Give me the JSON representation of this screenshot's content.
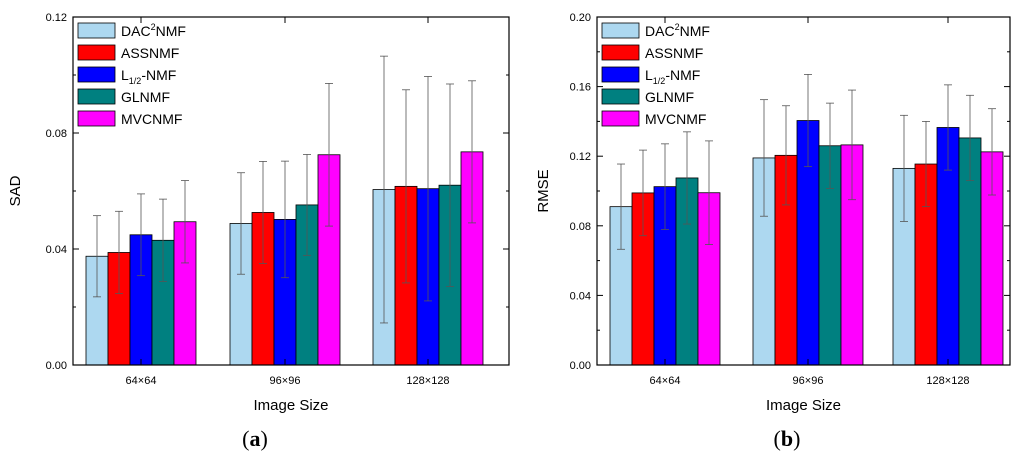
{
  "chart_data": [
    {
      "type": "bar",
      "panel": "a",
      "xlabel": "Image Size",
      "ylabel": "SAD",
      "ylim": [
        0,
        0.12
      ],
      "yticks": [
        "0.00",
        "0.04",
        "0.08",
        "0.12"
      ],
      "categories": [
        "64×64",
        "96×96",
        "128×128"
      ],
      "legend_position": "top-left",
      "series": [
        {
          "name": "DAC²NMF",
          "base": "DAC",
          "sup": "2",
          "after": "NMF",
          "color": "#add8f0",
          "values": [
            0.0375,
            0.0488,
            0.0605
          ],
          "errors": [
            0.014,
            0.0175,
            0.046
          ]
        },
        {
          "name": "ASSNMF",
          "base": "ASSNMF",
          "color": "#ff0000",
          "values": [
            0.0388,
            0.0526,
            0.0616
          ],
          "errors": [
            0.0142,
            0.0176,
            0.0333
          ]
        },
        {
          "name": "L1/2-NMF",
          "base": "L",
          "sub": "1/2",
          "after": "-NMF",
          "color": "#0000ff",
          "values": [
            0.0449,
            0.0502,
            0.0608
          ],
          "errors": [
            0.0141,
            0.0201,
            0.0387
          ]
        },
        {
          "name": "GLNMF",
          "base": "GLNMF",
          "color": "#008080",
          "values": [
            0.043,
            0.0552,
            0.062
          ],
          "errors": [
            0.0142,
            0.0174,
            0.0349
          ]
        },
        {
          "name": "MVCNMF",
          "base": "MVCNMF",
          "color": "#ff00ff",
          "values": [
            0.0494,
            0.0725,
            0.0735
          ],
          "errors": [
            0.0142,
            0.0246,
            0.0245
          ]
        }
      ]
    },
    {
      "type": "bar",
      "panel": "b",
      "xlabel": "Image Size",
      "ylabel": "RMSE",
      "ylim": [
        0,
        0.2
      ],
      "yticks": [
        "0.00",
        "0.04",
        "0.08",
        "0.12",
        "0.16",
        "0.20"
      ],
      "categories": [
        "64×64",
        "96×96",
        "128×128"
      ],
      "legend_position": "top-left",
      "series": [
        {
          "name": "DAC²NMF",
          "base": "DAC",
          "sup": "2",
          "after": "NMF",
          "color": "#add8f0",
          "values": [
            0.091,
            0.119,
            0.113
          ],
          "errors": [
            0.0245,
            0.0335,
            0.0305
          ]
        },
        {
          "name": "ASSNMF",
          "base": "ASSNMF",
          "color": "#ff0000",
          "values": [
            0.0989,
            0.1205,
            0.1155
          ],
          "errors": [
            0.0246,
            0.0285,
            0.0245
          ]
        },
        {
          "name": "L1/2-NMF",
          "base": "L",
          "sub": "1/2",
          "after": "-NMF",
          "color": "#0000ff",
          "values": [
            0.1025,
            0.1405,
            0.1365
          ],
          "errors": [
            0.0246,
            0.0265,
            0.0245
          ]
        },
        {
          "name": "GLNMF",
          "base": "GLNMF",
          "color": "#008080",
          "values": [
            0.1075,
            0.126,
            0.1305
          ],
          "errors": [
            0.0265,
            0.0245,
            0.0245
          ]
        },
        {
          "name": "MVCNMF",
          "base": "MVCNMF",
          "color": "#ff00ff",
          "values": [
            0.099,
            0.1265,
            0.1225
          ],
          "errors": [
            0.0298,
            0.0315,
            0.0248
          ]
        }
      ]
    }
  ],
  "panel_labels": [
    "a",
    "b"
  ]
}
